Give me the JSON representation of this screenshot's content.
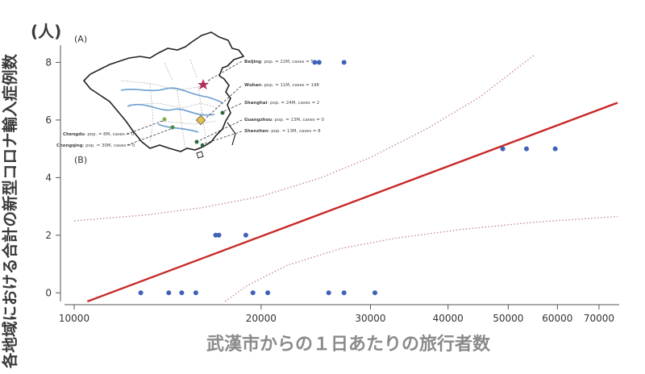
{
  "chart_data": {
    "type": "scatter",
    "xscale": "log",
    "ylabel": "各地域における合計の新型コロナ輸入症例数",
    "yunit": "(人)",
    "xlabel": "武漢市からの１日あたりの旅行者数",
    "xlim": [
      10000,
      75000
    ],
    "ylim": [
      -0.3,
      8.6
    ],
    "xticks": [
      10000,
      20000,
      30000,
      40000,
      50000,
      60000,
      70000
    ],
    "xtick_labels": [
      "10000",
      "20000",
      "30000",
      "40000",
      "50000",
      "60000",
      "70000"
    ],
    "yticks": [
      0,
      2,
      4,
      6,
      8
    ],
    "ytick_labels": [
      "0",
      "2",
      "4",
      "6",
      "8"
    ],
    "points": [
      {
        "x": 12800,
        "y": 0
      },
      {
        "x": 14200,
        "y": 0
      },
      {
        "x": 14900,
        "y": 0
      },
      {
        "x": 15700,
        "y": 0
      },
      {
        "x": 19400,
        "y": 0
      },
      {
        "x": 20500,
        "y": 0
      },
      {
        "x": 25700,
        "y": 0
      },
      {
        "x": 27200,
        "y": 0
      },
      {
        "x": 30500,
        "y": 0
      },
      {
        "x": 16900,
        "y": 2
      },
      {
        "x": 17100,
        "y": 2
      },
      {
        "x": 18900,
        "y": 2
      },
      {
        "x": 24400,
        "y": 8
      },
      {
        "x": 24800,
        "y": 8
      },
      {
        "x": 27200,
        "y": 8
      },
      {
        "x": 49000,
        "y": 5
      },
      {
        "x": 53500,
        "y": 5
      },
      {
        "x": 59500,
        "y": 5
      }
    ],
    "fit_line": [
      {
        "x": 10500,
        "y": -0.3
      },
      {
        "x": 75000,
        "y": 6.6
      }
    ],
    "ci_upper": [
      {
        "x": 10000,
        "y": 2.5
      },
      {
        "x": 13000,
        "y": 2.7
      },
      {
        "x": 16000,
        "y": 2.95
      },
      {
        "x": 20000,
        "y": 3.35
      },
      {
        "x": 25000,
        "y": 4.0
      },
      {
        "x": 30000,
        "y": 4.7
      },
      {
        "x": 37000,
        "y": 5.7
      },
      {
        "x": 45000,
        "y": 6.8
      },
      {
        "x": 55000,
        "y": 8.25
      }
    ],
    "ci_lower": [
      {
        "x": 17500,
        "y": -0.3
      },
      {
        "x": 19000,
        "y": 0.25
      },
      {
        "x": 22000,
        "y": 0.95
      },
      {
        "x": 27000,
        "y": 1.55
      },
      {
        "x": 33000,
        "y": 1.9
      },
      {
        "x": 42000,
        "y": 2.2
      },
      {
        "x": 55000,
        "y": 2.45
      },
      {
        "x": 75000,
        "y": 2.65
      }
    ],
    "colors": {
      "points": "#3f62b8",
      "fit": "#c92a2a",
      "ci": "#c78a9a",
      "axis": "#555555"
    },
    "grid": false,
    "legend": "none"
  },
  "inset": {
    "label_a": "(A)",
    "label_b": "(B)",
    "cities": [
      {
        "name": "Beijing",
        "info": "pop. = 22M, cases = 5"
      },
      {
        "name": "Wuhan",
        "info": "pop. = 11M, cases = 198"
      },
      {
        "name": "Shanghai",
        "info": "pop. = 24M, cases = 2"
      },
      {
        "name": "Guangzhou",
        "info": "pop. = 13M, cases = 0"
      },
      {
        "name": "Shenzhen",
        "info": "pop. = 13M, cases = 8"
      },
      {
        "name": "Chengdu",
        "info": "pop. = 8M, cases = 0"
      },
      {
        "name": "Chongqing",
        "info": "pop. = 30M, cases = 0"
      }
    ],
    "colors": {
      "border": "#222222",
      "rivers": "#6a9fd0",
      "provinces": "#b5b5b5",
      "star": "#b0305a"
    },
    "map_icon": "china-map"
  }
}
